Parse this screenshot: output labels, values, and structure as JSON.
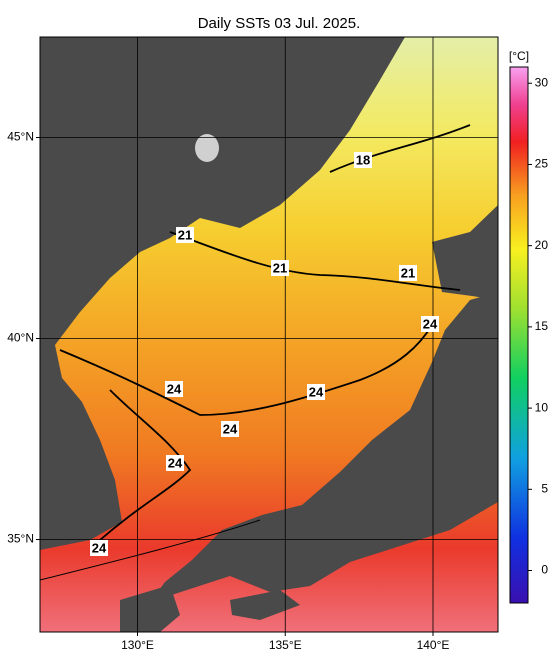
{
  "map": {
    "title": "Daily SSTs 03 Jul. 2025.",
    "xlim": [
      126.7,
      142.2
    ],
    "ylim": [
      32.7,
      47.5
    ],
    "xticks": [
      {
        "value": 130,
        "label": "130°E"
      },
      {
        "value": 135,
        "label": "135°E"
      },
      {
        "value": 140,
        "label": "140°E"
      }
    ],
    "yticks": [
      {
        "value": 35,
        "label": "35°N"
      },
      {
        "value": 40,
        "label": "40°N"
      },
      {
        "value": 45,
        "label": "45°N"
      }
    ],
    "grid": true,
    "contour_labels": [
      18,
      21,
      21,
      21,
      24,
      24,
      24,
      24,
      24,
      24
    ],
    "colorbar": {
      "unit": "[°C]",
      "lim": [
        -2,
        31
      ],
      "ticks": [
        0,
        5,
        10,
        15,
        20,
        25,
        30
      ]
    }
  }
}
